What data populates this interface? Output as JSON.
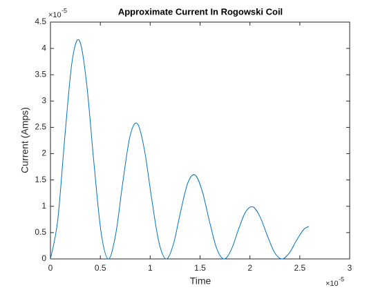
{
  "chart_data": {
    "type": "line",
    "title": "Approximate Current In Rogowski Coil",
    "xlabel": "Time",
    "ylabel": "Current (Amps)",
    "x_multiplier": "×10",
    "x_exponent": "-5",
    "y_multiplier": "×10",
    "y_exponent": "-5",
    "x": [
      0,
      0.0725,
      0.145,
      0.2175,
      0.29,
      0.3625,
      0.435,
      0.5075,
      0.58,
      0.6525,
      0.725,
      0.7975,
      0.87,
      0.9425,
      1.015,
      1.0875,
      1.16,
      1.2325,
      1.305,
      1.3775,
      1.45,
      1.5225,
      1.595,
      1.6675,
      1.74,
      1.8125,
      1.885,
      1.9575,
      2.03,
      2.1025,
      2.175,
      2.2475,
      2.32,
      2.3925,
      2.465,
      2.5375,
      2.59
    ],
    "series": [
      {
        "color": "#0072bd",
        "values": [
          0,
          0.727,
          2.338,
          3.76,
          4.15,
          3.337,
          1.841,
          0.508,
          0,
          0.451,
          1.45,
          2.332,
          2.573,
          2.069,
          1.142,
          0.315,
          0,
          0.279,
          0.899,
          1.446,
          1.595,
          1.283,
          0.708,
          0.195,
          0,
          0.173,
          0.558,
          0.896,
          0.989,
          0.796,
          0.439,
          0.121,
          0,
          0.107,
          0.346,
          0.556,
          0.618
        ]
      }
    ],
    "xlim": [
      0,
      3
    ],
    "xticks": [
      0,
      0.5,
      1,
      1.5,
      2,
      2.5,
      3
    ],
    "ylim": [
      0,
      4.5
    ],
    "yticks": [
      0,
      0.5,
      1,
      1.5,
      2,
      2.5,
      3,
      3.5,
      4,
      4.5
    ],
    "grid": false
  }
}
